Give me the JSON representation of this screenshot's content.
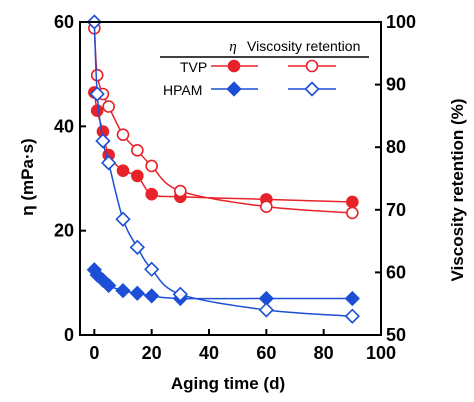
{
  "chart_data": {
    "type": "line",
    "xlabel": "Aging time (d)",
    "ylabel_left": "η (mPa·s)",
    "ylabel_right": "Viscosity retention (%)",
    "xlim": [
      -5,
      100
    ],
    "ylim_left": [
      0,
      60
    ],
    "ylim_right": [
      50,
      100
    ],
    "xticks": [
      "0",
      "20",
      "40",
      "60",
      "80",
      "100"
    ],
    "yticks_left": [
      "0",
      "20",
      "40",
      "60"
    ],
    "yticks_right": [
      "50",
      "60",
      "70",
      "80",
      "90",
      "100"
    ],
    "grid": false,
    "legend": {
      "position": "top-right",
      "header_eta": "η",
      "header_retention": "Viscosity retention",
      "rows": [
        "TVP",
        "HPAM"
      ]
    },
    "series": [
      {
        "name": "TVP",
        "measure": "eta",
        "axis": "left",
        "marker": "circle-filled",
        "color": "#e8222a",
        "x": [
          0,
          1,
          3,
          5,
          10,
          15,
          20,
          30,
          60,
          90
        ],
        "y": [
          46.5,
          43,
          39,
          34.5,
          31.5,
          30.5,
          27,
          26.5,
          26,
          25.5
        ]
      },
      {
        "name": "TVP",
        "measure": "retention",
        "axis": "right",
        "marker": "circle-open",
        "color": "#e8222a",
        "x": [
          0,
          1,
          3,
          5,
          10,
          15,
          20,
          30,
          60,
          90
        ],
        "y": [
          99,
          91.5,
          88.5,
          86.5,
          82,
          79.5,
          77,
          73,
          70.5,
          69.5
        ]
      },
      {
        "name": "HPAM",
        "measure": "eta",
        "axis": "left",
        "marker": "diamond-filled",
        "color": "#1c4fd6",
        "x": [
          0,
          1,
          3,
          5,
          10,
          15,
          20,
          30,
          60,
          90
        ],
        "y": [
          12.5,
          11.5,
          10.5,
          9.5,
          8.5,
          8,
          7.5,
          7,
          7,
          7
        ]
      },
      {
        "name": "HPAM",
        "measure": "retention",
        "axis": "right",
        "marker": "diamond-open",
        "color": "#1c4fd6",
        "x": [
          0,
          1,
          3,
          5,
          10,
          15,
          20,
          30,
          60,
          90
        ],
        "y": [
          100,
          88.5,
          81,
          77.5,
          68.5,
          64,
          60.5,
          56.5,
          54,
          53
        ]
      }
    ]
  }
}
